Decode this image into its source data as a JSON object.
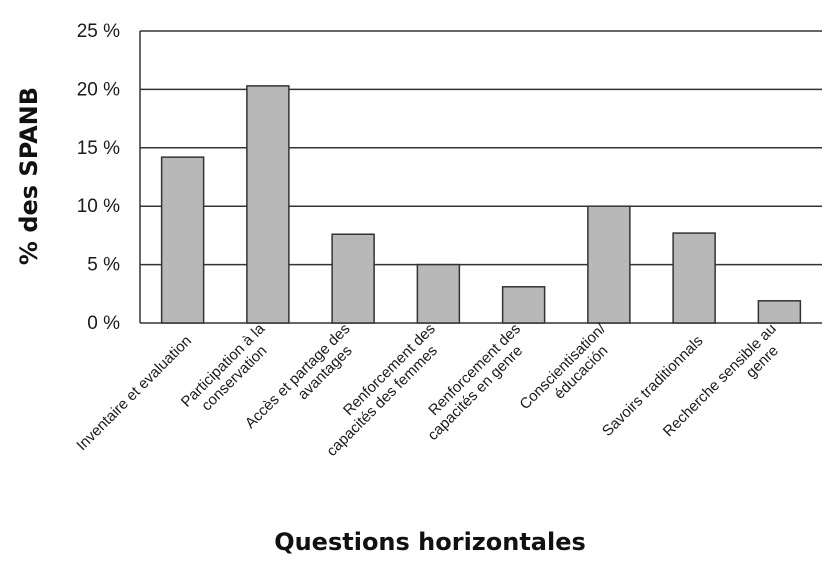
{
  "chart_data": {
    "type": "bar",
    "title": "",
    "xlabel": "Questions horizontales",
    "ylabel": "% des SPANB",
    "ylim": [
      0,
      25
    ],
    "yticks": [
      0,
      5,
      10,
      15,
      20,
      25
    ],
    "ytick_labels": [
      "0 %",
      "5 %",
      "10 %",
      "15 %",
      "20 %",
      "25 %"
    ],
    "grid": "horizontal",
    "legend": "none",
    "categories": [
      [
        "Inventaire et evaluation"
      ],
      [
        "Participation à la",
        "conservation"
      ],
      [
        "Accès et partage des",
        "avantages"
      ],
      [
        "Renforcement des",
        "capacités des femmes"
      ],
      [
        "Renforcement des",
        "capacités en genre"
      ],
      [
        "Conscientisation/",
        "éducación"
      ],
      [
        "Savoirs traditionnals"
      ],
      [
        "Recherche sensible au",
        "genre"
      ]
    ],
    "values": [
      14.2,
      20.3,
      7.6,
      5.0,
      3.1,
      10.0,
      7.7,
      1.9
    ],
    "colors": {
      "bar": "#b8b8b8",
      "bar_stroke": "#333333",
      "grid": "#333333"
    }
  }
}
